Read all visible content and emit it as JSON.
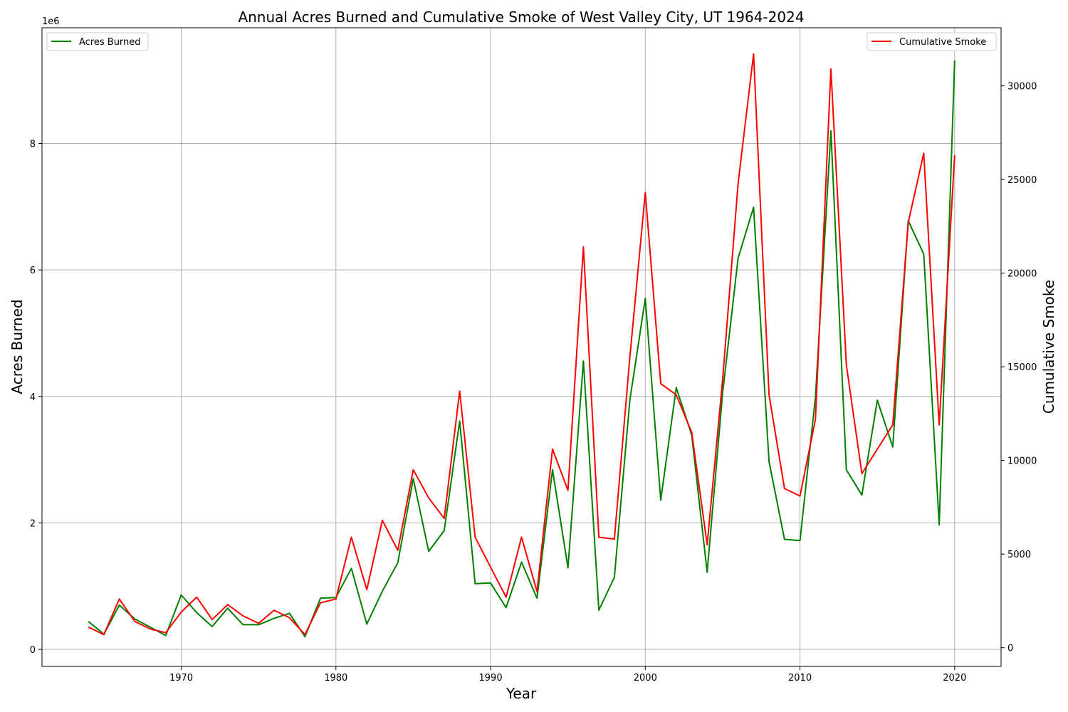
{
  "chart_data": {
    "type": "line",
    "title": "Annual Acres Burned and Cumulative Smoke of West Valley City, UT 1964-2024",
    "xlabel": "Year",
    "ylabel_left": "Acres Burned",
    "ylabel_right": "Cumulative Smoke",
    "left_axis_multiplier": "1e6",
    "xlim": [
      1961,
      2023
    ],
    "ylim_left": [
      -270000,
      9830000
    ],
    "ylim_right": [
      -1000,
      33100
    ],
    "x_ticks": [
      1970,
      1980,
      1990,
      2000,
      2010,
      2020
    ],
    "y_left_ticks": [
      0,
      2,
      4,
      6,
      8
    ],
    "y_right_ticks": [
      0,
      5000,
      10000,
      15000,
      20000,
      25000,
      30000
    ],
    "grid": true,
    "x": [
      1964,
      1965,
      1966,
      1967,
      1968,
      1969,
      1970,
      1971,
      1972,
      1973,
      1974,
      1975,
      1976,
      1977,
      1978,
      1979,
      1980,
      1981,
      1982,
      1983,
      1984,
      1985,
      1986,
      1987,
      1988,
      1989,
      1990,
      1991,
      1992,
      1993,
      1994,
      1995,
      1996,
      1997,
      1998,
      1999,
      2000,
      2001,
      2002,
      2003,
      2004,
      2005,
      2006,
      2007,
      2008,
      2009,
      2010,
      2011,
      2012,
      2013,
      2014,
      2015,
      2016,
      2017,
      2018,
      2019,
      2020
    ],
    "series": [
      {
        "name": "Acres Burned",
        "axis": "left",
        "color": "#008000",
        "legend_position": "upper left",
        "values": [
          440000,
          240000,
          700000,
          480000,
          350000,
          220000,
          860000,
          580000,
          360000,
          650000,
          390000,
          390000,
          490000,
          570000,
          200000,
          810000,
          820000,
          1280000,
          400000,
          920000,
          1370000,
          2700000,
          1550000,
          1880000,
          3610000,
          1040000,
          1050000,
          660000,
          1380000,
          810000,
          2840000,
          1290000,
          4560000,
          620000,
          1140000,
          3940000,
          5550000,
          2360000,
          4140000,
          3390000,
          1220000,
          4050000,
          6190000,
          6990000,
          2970000,
          1740000,
          1720000,
          3990000,
          8200000,
          2840000,
          2440000,
          3940000,
          3200000,
          6780000,
          6250000,
          1970000,
          9310000
        ]
      },
      {
        "name": "Cumulative Smoke",
        "axis": "right",
        "color": "#ff0000",
        "legend_position": "upper right",
        "values": [
          1100,
          700,
          2600,
          1400,
          1000,
          800,
          1900,
          2700,
          1500,
          2300,
          1700,
          1300,
          2000,
          1600,
          700,
          2400,
          2600,
          5900,
          3100,
          6800,
          5200,
          9500,
          8000,
          6900,
          13700,
          5900,
          4300,
          2700,
          5900,
          3000,
          10600,
          8400,
          21400,
          5900,
          5800,
          15500,
          24300,
          14100,
          13500,
          11500,
          5500,
          14300,
          24800,
          31700,
          13500,
          8500,
          8100,
          12200,
          30900,
          15100,
          9300,
          10600,
          11900,
          22700,
          26400,
          11900,
          26300
        ]
      }
    ]
  }
}
